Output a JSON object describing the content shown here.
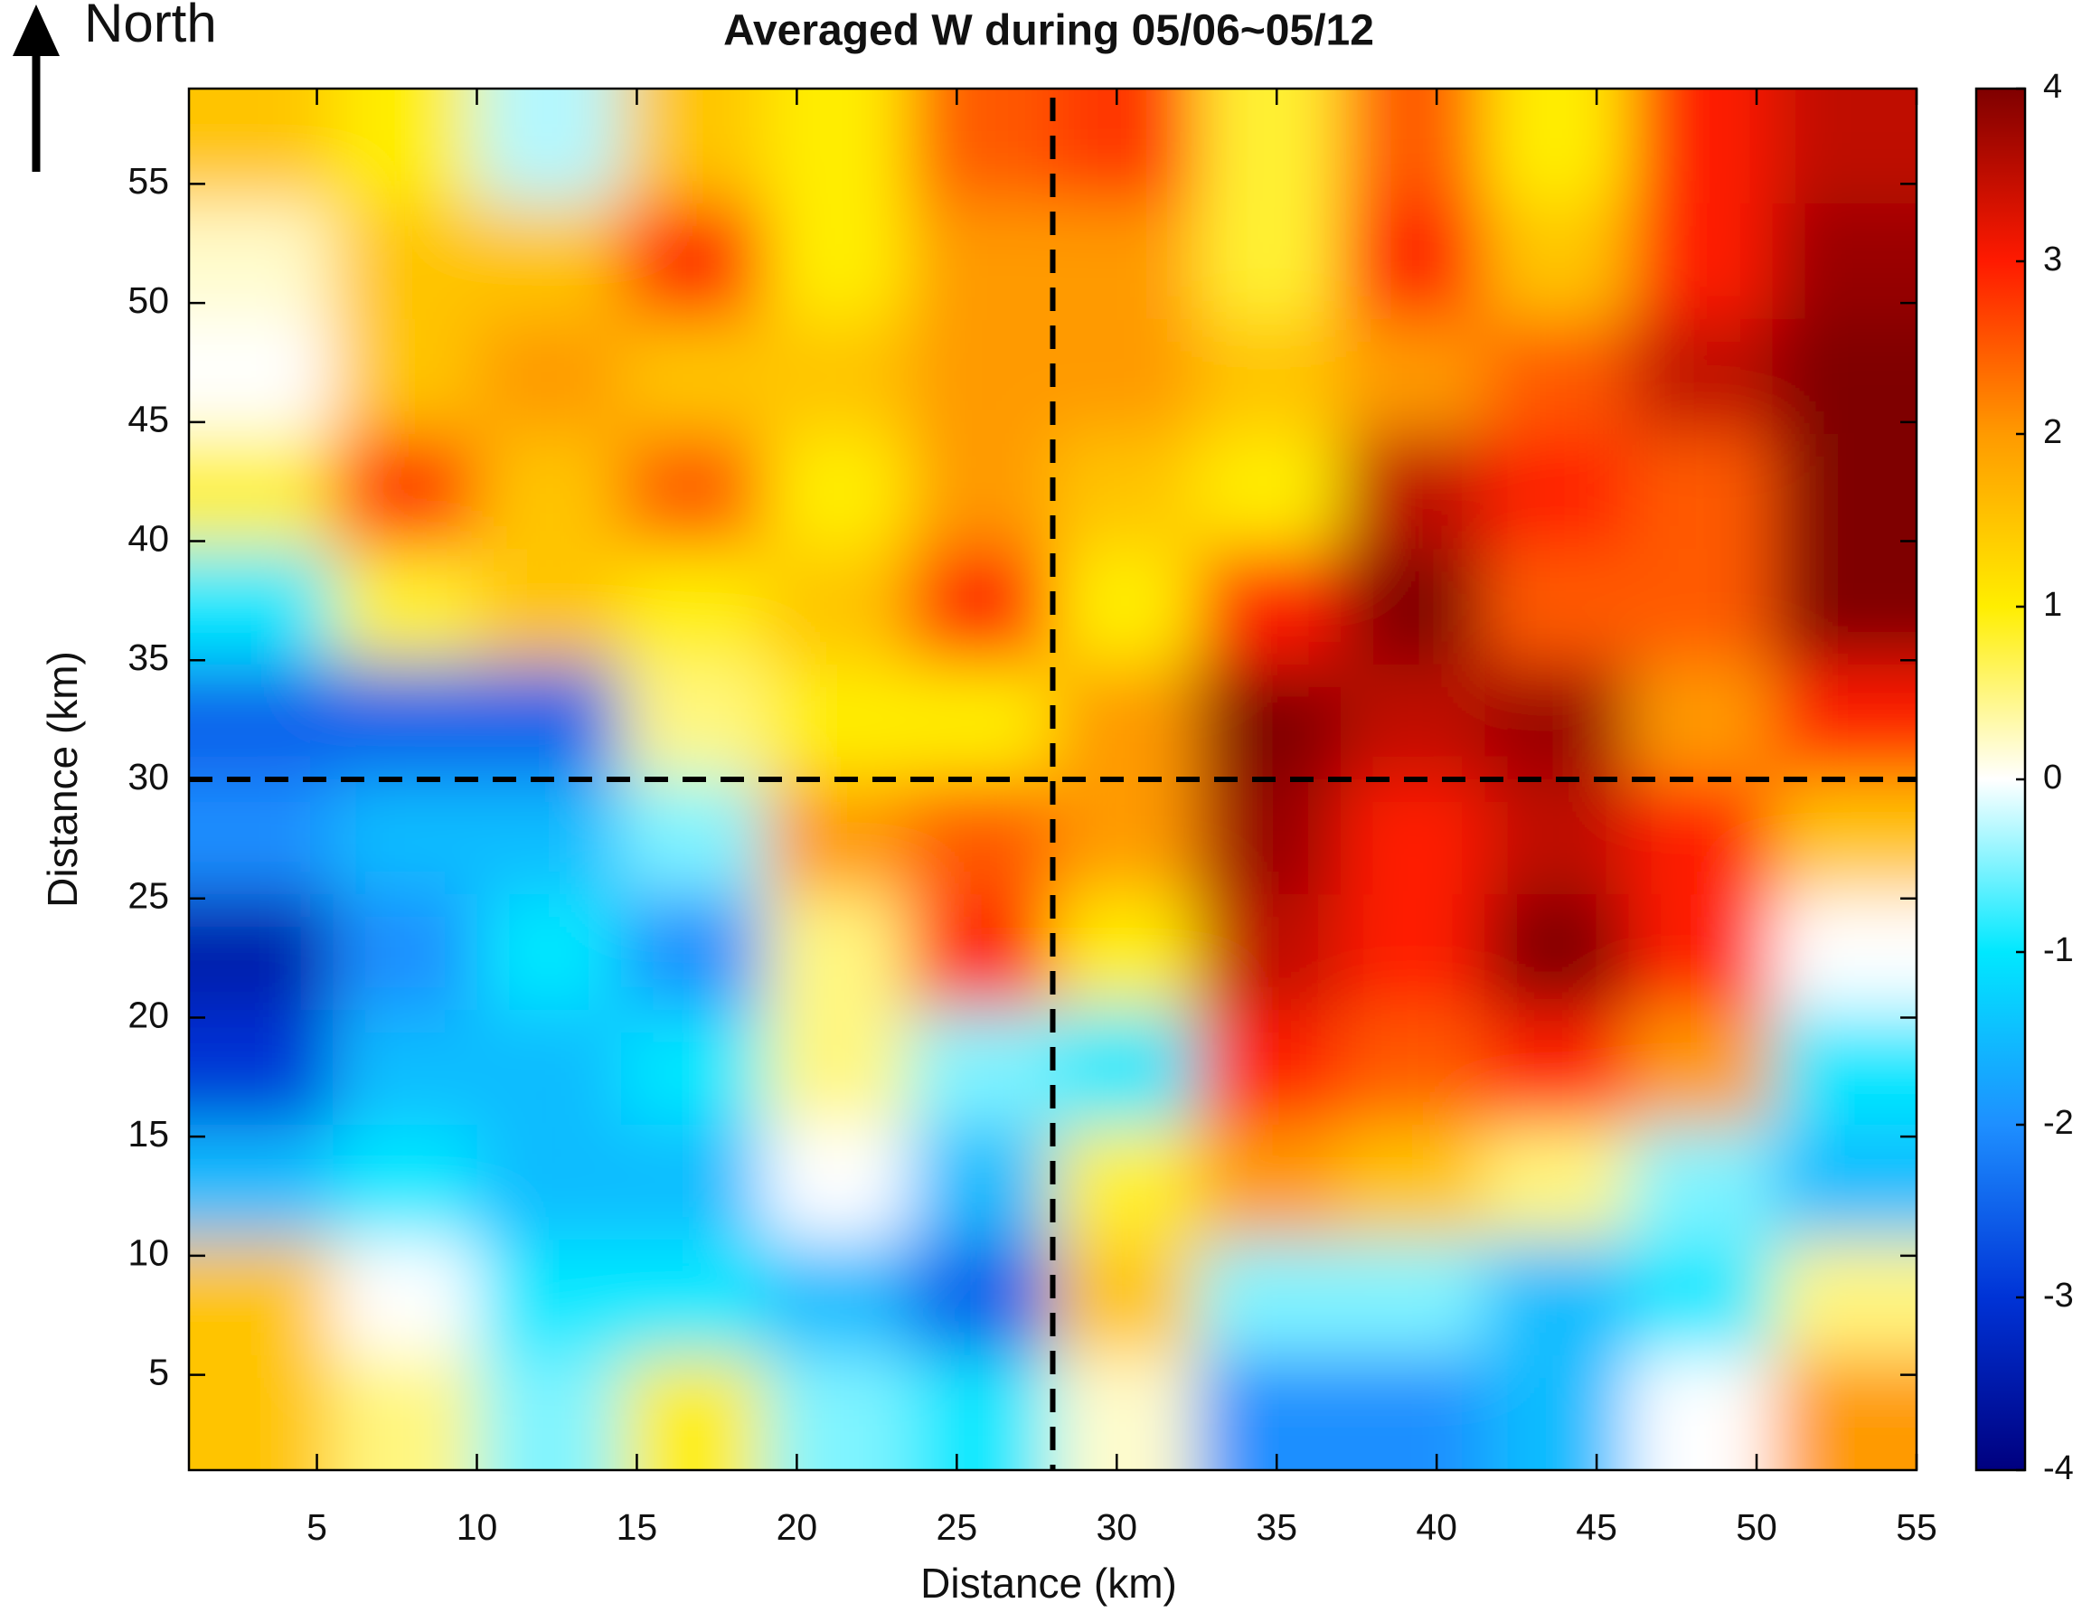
{
  "chart_data": {
    "type": "heatmap",
    "title": "Averaged W during 05/06~05/12",
    "x_label": "Distance (km)",
    "y_label": "Distance (km)",
    "annotation": "North",
    "x": [
      3.25,
      7.75,
      12.25,
      16.75,
      21.25,
      25.75,
      30.25,
      34.75,
      39.25,
      43.75,
      48.25,
      52.75
    ],
    "y": [
      56.6,
      51.75,
      46.9,
      42.1,
      37.25,
      32.4,
      27.6,
      22.75,
      17.9,
      13.1,
      8.25,
      3.4
    ],
    "values": [
      [
        1.5,
        1.0,
        -0.3,
        1.5,
        1.0,
        2.5,
        2.8,
        0.8,
        2.5,
        1.0,
        3.0,
        3.5
      ],
      [
        0.2,
        1.5,
        1.5,
        3.0,
        1.0,
        2.0,
        2.0,
        0.8,
        3.0,
        1.5,
        3.0,
        3.8
      ],
      [
        0.0,
        1.5,
        2.0,
        1.5,
        1.5,
        2.0,
        2.0,
        1.5,
        2.0,
        2.5,
        3.5,
        4.0
      ],
      [
        0.8,
        2.8,
        1.5,
        2.5,
        1.0,
        2.0,
        1.5,
        1.0,
        3.5,
        3.0,
        2.5,
        4.0
      ],
      [
        -1.0,
        0.8,
        1.5,
        1.0,
        1.5,
        3.0,
        1.0,
        3.0,
        4.0,
        2.5,
        2.5,
        4.0
      ],
      [
        -2.5,
        -2.5,
        -2.5,
        0.5,
        1.0,
        1.0,
        2.0,
        4.0,
        3.5,
        3.8,
        2.0,
        3.0
      ],
      [
        -2.0,
        -1.5,
        -1.5,
        -0.5,
        2.0,
        2.5,
        2.0,
        3.8,
        3.0,
        3.5,
        3.0,
        1.5
      ],
      [
        -3.5,
        -2.0,
        -1.0,
        -2.0,
        0.5,
        3.0,
        1.0,
        3.5,
        3.0,
        4.0,
        3.0,
        0.0
      ],
      [
        -3.0,
        -1.5,
        -1.5,
        -1.0,
        0.5,
        -0.5,
        -1.0,
        3.0,
        2.5,
        3.0,
        2.0,
        -1.0
      ],
      [
        -1.5,
        -1.0,
        -1.5,
        -1.5,
        0.0,
        -1.5,
        0.8,
        2.0,
        1.5,
        0.5,
        -0.5,
        -1.5
      ],
      [
        1.5,
        0.0,
        -1.0,
        -1.0,
        -1.5,
        -2.5,
        1.5,
        -0.5,
        -0.5,
        -1.5,
        -1.0,
        0.5
      ],
      [
        1.5,
        0.5,
        -0.5,
        1.0,
        -0.5,
        -1.0,
        0.2,
        -2.0,
        -2.0,
        -1.5,
        0.0,
        2.0
      ]
    ],
    "xlim": [
      1,
      55
    ],
    "ylim": [
      1,
      59
    ],
    "xticks": [
      5,
      10,
      15,
      20,
      25,
      30,
      35,
      40,
      45,
      50,
      55
    ],
    "yticks": [
      5,
      10,
      15,
      20,
      25,
      30,
      35,
      40,
      45,
      50,
      55
    ],
    "clim": [
      -4,
      4
    ],
    "cticks": [
      -4,
      -3,
      -2,
      -1,
      0,
      1,
      2,
      3,
      4
    ],
    "colormap": [
      "#00007f",
      "#0033d6",
      "#1e8fff",
      "#00e8ff",
      "#ffffff",
      "#ffee00",
      "#ff9a00",
      "#ff1a00",
      "#7f0000"
    ],
    "reference_lines": {
      "x": 28,
      "y": 30
    }
  }
}
